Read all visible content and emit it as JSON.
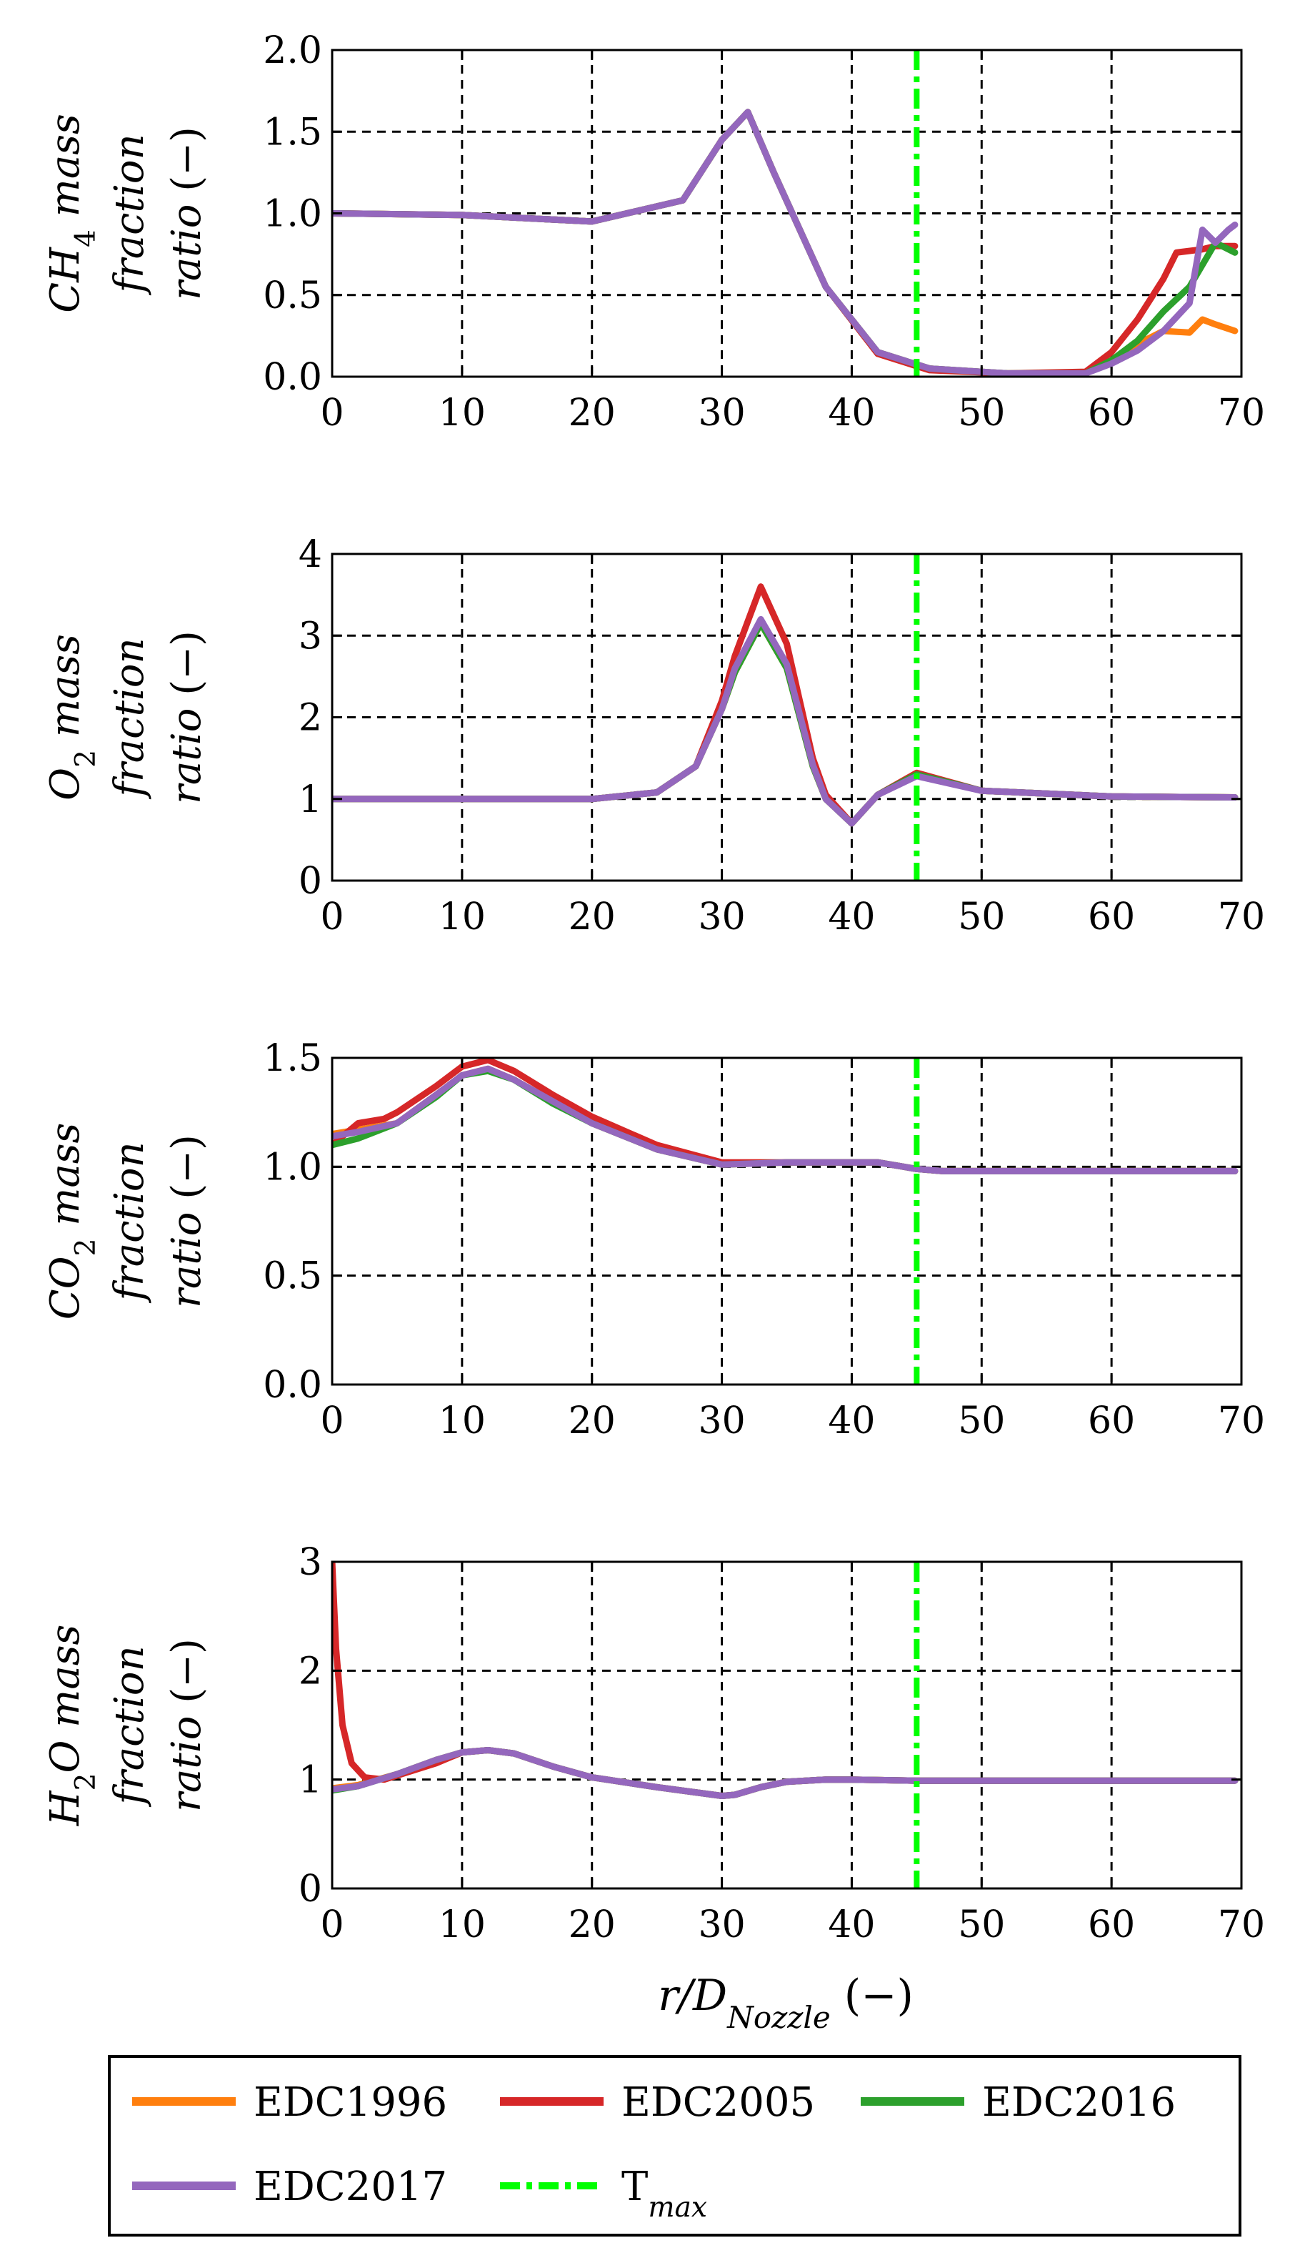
{
  "chart_data": [
    {
      "type": "line",
      "ylabel_lines": [
        "CH4 mass",
        "fraction",
        "ratio (−)"
      ],
      "xlim": [
        0,
        70
      ],
      "ylim": [
        0,
        2
      ],
      "xticks": [
        "0",
        "10",
        "20",
        "30",
        "40",
        "50",
        "60",
        "70"
      ],
      "yticks": [
        "0.0",
        "0.5",
        "1.0",
        "1.5",
        "2.0"
      ],
      "ytick_values": [
        0,
        0.5,
        1.0,
        1.5,
        2.0
      ],
      "grid": true,
      "vline_x": 45,
      "series": [
        {
          "name": "EDC1996",
          "x": [
            0,
            10,
            20,
            27,
            30,
            32,
            34,
            38,
            42,
            46,
            52,
            58,
            60,
            62,
            64,
            66,
            67,
            68,
            69.5
          ],
          "y": [
            1,
            0.99,
            0.95,
            1.08,
            1.45,
            1.62,
            1.25,
            0.55,
            0.15,
            0.05,
            0.02,
            0.02,
            0.1,
            0.2,
            0.28,
            0.27,
            0.35,
            0.32,
            0.28
          ]
        },
        {
          "name": "EDC2005",
          "x": [
            0,
            10,
            20,
            27,
            30,
            32,
            34,
            38,
            42,
            46,
            52,
            58,
            60,
            62,
            64,
            65,
            67,
            68,
            69.5
          ],
          "y": [
            1,
            0.99,
            0.95,
            1.08,
            1.45,
            1.62,
            1.25,
            0.55,
            0.14,
            0.04,
            0.02,
            0.03,
            0.15,
            0.35,
            0.6,
            0.76,
            0.78,
            0.8,
            0.8
          ]
        },
        {
          "name": "EDC2016",
          "x": [
            0,
            10,
            20,
            27,
            30,
            32,
            34,
            38,
            42,
            46,
            52,
            58,
            60,
            62,
            64,
            66,
            68,
            69.5
          ],
          "y": [
            1,
            0.99,
            0.95,
            1.08,
            1.45,
            1.62,
            1.25,
            0.55,
            0.15,
            0.05,
            0.02,
            0.02,
            0.1,
            0.22,
            0.4,
            0.55,
            0.82,
            0.76
          ]
        },
        {
          "name": "EDC2017",
          "x": [
            0,
            10,
            20,
            27,
            30,
            32,
            34,
            38,
            42,
            46,
            52,
            58,
            60,
            62,
            64,
            66,
            67,
            68,
            69,
            69.5
          ],
          "y": [
            1,
            0.99,
            0.95,
            1.08,
            1.45,
            1.62,
            1.25,
            0.55,
            0.15,
            0.05,
            0.02,
            0.02,
            0.08,
            0.16,
            0.28,
            0.45,
            0.9,
            0.82,
            0.9,
            0.93
          ]
        }
      ]
    },
    {
      "type": "line",
      "ylabel_lines": [
        "O2 mass",
        "fraction",
        "ratio (−)"
      ],
      "xlim": [
        0,
        70
      ],
      "ylim": [
        0,
        4
      ],
      "xticks": [
        "0",
        "10",
        "20",
        "30",
        "40",
        "50",
        "60",
        "70"
      ],
      "yticks": [
        "0",
        "1",
        "2",
        "3",
        "4"
      ],
      "ytick_values": [
        0,
        1,
        2,
        3,
        4
      ],
      "grid": true,
      "vline_x": 45,
      "series": [
        {
          "name": "EDC1996",
          "x": [
            0,
            10,
            20,
            25,
            28,
            30,
            31,
            33,
            35,
            37,
            38,
            40,
            42,
            45,
            50,
            60,
            69.5
          ],
          "y": [
            1,
            1,
            1,
            1.08,
            1.4,
            2.1,
            2.55,
            3.15,
            2.6,
            1.4,
            1,
            0.7,
            1.05,
            1.3,
            1.1,
            1.03,
            1.02
          ]
        },
        {
          "name": "EDC2005",
          "x": [
            0,
            10,
            20,
            25,
            28,
            30,
            31,
            33,
            35,
            37,
            38,
            40,
            42,
            45,
            50,
            60,
            69.5
          ],
          "y": [
            1,
            1,
            1,
            1.08,
            1.4,
            2.2,
            2.75,
            3.6,
            2.9,
            1.5,
            1.05,
            0.7,
            1.05,
            1.32,
            1.1,
            1.03,
            1.02
          ]
        },
        {
          "name": "EDC2016",
          "x": [
            0,
            10,
            20,
            25,
            28,
            30,
            31,
            33,
            35,
            37,
            38,
            40,
            42,
            45,
            50,
            60,
            69.5
          ],
          "y": [
            1,
            1,
            1,
            1.08,
            1.4,
            2.1,
            2.55,
            3.15,
            2.6,
            1.4,
            1,
            0.7,
            1.05,
            1.3,
            1.1,
            1.03,
            1.02
          ]
        },
        {
          "name": "EDC2017",
          "x": [
            0,
            10,
            20,
            25,
            28,
            30,
            31,
            33,
            35,
            37,
            38,
            40,
            42,
            45,
            50,
            60,
            69.5
          ],
          "y": [
            1,
            1,
            1,
            1.08,
            1.4,
            2.1,
            2.6,
            3.2,
            2.65,
            1.42,
            1,
            0.7,
            1.05,
            1.28,
            1.1,
            1.03,
            1.02
          ]
        }
      ]
    },
    {
      "type": "line",
      "ylabel_lines": [
        "CO2 mass",
        "fraction",
        "ratio (−)"
      ],
      "xlim": [
        0,
        70
      ],
      "ylim": [
        0,
        1.5
      ],
      "xticks": [
        "0",
        "10",
        "20",
        "30",
        "40",
        "50",
        "60",
        "70"
      ],
      "yticks": [
        "0.0",
        "0.5",
        "1.0",
        "1.5"
      ],
      "ytick_values": [
        0,
        0.5,
        1.0,
        1.5
      ],
      "grid": true,
      "vline_x": 45,
      "series": [
        {
          "name": "EDC1996",
          "x": [
            0,
            2,
            5,
            8,
            10,
            12,
            14,
            17,
            20,
            25,
            30,
            35,
            40,
            42,
            45,
            47,
            50,
            60,
            69.5
          ],
          "y": [
            1.15,
            1.17,
            1.2,
            1.33,
            1.42,
            1.45,
            1.4,
            1.3,
            1.2,
            1.08,
            1.01,
            1.02,
            1.02,
            1.02,
            0.99,
            0.98,
            0.98,
            0.98,
            0.98
          ]
        },
        {
          "name": "EDC2005",
          "x": [
            0,
            2,
            4,
            5,
            8,
            10,
            12,
            14,
            17,
            20,
            25,
            30,
            35,
            40,
            42,
            45,
            47,
            50,
            60,
            69.5
          ],
          "y": [
            1.1,
            1.2,
            1.22,
            1.25,
            1.37,
            1.46,
            1.49,
            1.44,
            1.33,
            1.23,
            1.1,
            1.02,
            1.02,
            1.02,
            1.02,
            0.99,
            0.98,
            0.98,
            0.98,
            0.98
          ]
        },
        {
          "name": "EDC2016",
          "x": [
            0,
            2,
            5,
            8,
            10,
            12,
            14,
            17,
            20,
            25,
            30,
            35,
            40,
            42,
            45,
            47,
            50,
            60,
            69.5
          ],
          "y": [
            1.1,
            1.13,
            1.2,
            1.32,
            1.42,
            1.44,
            1.4,
            1.29,
            1.2,
            1.08,
            1.01,
            1.02,
            1.02,
            1.02,
            0.99,
            0.98,
            0.98,
            0.98,
            0.98
          ]
        },
        {
          "name": "EDC2017",
          "x": [
            0,
            2,
            5,
            8,
            10,
            12,
            14,
            17,
            20,
            25,
            30,
            35,
            40,
            42,
            45,
            47,
            50,
            60,
            69.5
          ],
          "y": [
            1.14,
            1.16,
            1.2,
            1.33,
            1.42,
            1.45,
            1.4,
            1.3,
            1.2,
            1.08,
            1.01,
            1.02,
            1.02,
            1.02,
            0.99,
            0.98,
            0.98,
            0.98,
            0.98
          ]
        }
      ]
    },
    {
      "type": "line",
      "ylabel_lines": [
        "H2O mass",
        "fraction",
        "ratio (−)"
      ],
      "xlim": [
        0,
        70
      ],
      "ylim": [
        0,
        3
      ],
      "xticks": [
        "0",
        "10",
        "20",
        "30",
        "40",
        "50",
        "60",
        "70"
      ],
      "yticks": [
        "0",
        "1",
        "2",
        "3"
      ],
      "ytick_values": [
        0,
        1,
        2,
        3
      ],
      "grid": true,
      "vline_x": 45,
      "series": [
        {
          "name": "EDC1996",
          "x": [
            0,
            2,
            5,
            8,
            10,
            12,
            14,
            17,
            20,
            25,
            30,
            31,
            33,
            35,
            38,
            40,
            45,
            50,
            60,
            69.5
          ],
          "y": [
            0.92,
            0.95,
            1.05,
            1.18,
            1.25,
            1.27,
            1.24,
            1.12,
            1.02,
            0.93,
            0.85,
            0.86,
            0.93,
            0.98,
            1,
            1,
            0.99,
            0.99,
            0.99,
            0.99
          ]
        },
        {
          "name": "EDC2005",
          "x": [
            0,
            0.3,
            0.8,
            1.5,
            2.5,
            4,
            8,
            10,
            12,
            14,
            17,
            20,
            25,
            30,
            31,
            33,
            35,
            38,
            40,
            45,
            50,
            60,
            69.5
          ],
          "y": [
            3,
            2.2,
            1.5,
            1.15,
            1.02,
            1.0,
            1.15,
            1.25,
            1.27,
            1.24,
            1.12,
            1.02,
            0.93,
            0.85,
            0.86,
            0.93,
            0.98,
            1,
            1,
            0.99,
            0.99,
            0.99,
            0.99
          ]
        },
        {
          "name": "EDC2016",
          "x": [
            0,
            2,
            5,
            8,
            10,
            12,
            14,
            17,
            20,
            25,
            30,
            31,
            33,
            35,
            38,
            40,
            45,
            50,
            60,
            69.5
          ],
          "y": [
            0.9,
            0.94,
            1.05,
            1.18,
            1.25,
            1.27,
            1.24,
            1.12,
            1.02,
            0.93,
            0.85,
            0.86,
            0.93,
            0.98,
            1,
            1,
            0.99,
            0.99,
            0.99,
            0.99
          ]
        },
        {
          "name": "EDC2017",
          "x": [
            0,
            2,
            5,
            8,
            10,
            12,
            14,
            17,
            20,
            25,
            30,
            31,
            33,
            35,
            38,
            40,
            45,
            50,
            60,
            69.5
          ],
          "y": [
            0.91,
            0.94,
            1.05,
            1.18,
            1.25,
            1.27,
            1.24,
            1.12,
            1.02,
            0.93,
            0.85,
            0.86,
            0.93,
            0.98,
            1,
            1,
            0.99,
            0.99,
            0.99,
            0.99
          ]
        }
      ]
    }
  ],
  "xlabel": "r/DNozzle (−)",
  "legend": {
    "placement": "bottom",
    "entries": [
      {
        "label": "EDC1996",
        "color": "#ff7f0e",
        "style": "solid"
      },
      {
        "label": "EDC2005",
        "color": "#d62728",
        "style": "solid"
      },
      {
        "label": "EDC2016",
        "color": "#2ca02c",
        "style": "solid"
      },
      {
        "label": "EDC2017",
        "color": "#9467bd",
        "style": "solid"
      },
      {
        "label": "Tmax",
        "color": "#00ff00",
        "style": "dashdot"
      }
    ]
  },
  "colors": {
    "EDC1996": "#ff7f0e",
    "EDC2005": "#d62728",
    "EDC2016": "#2ca02c",
    "EDC2017": "#9467bd",
    "Tmax": "#00ff00"
  }
}
